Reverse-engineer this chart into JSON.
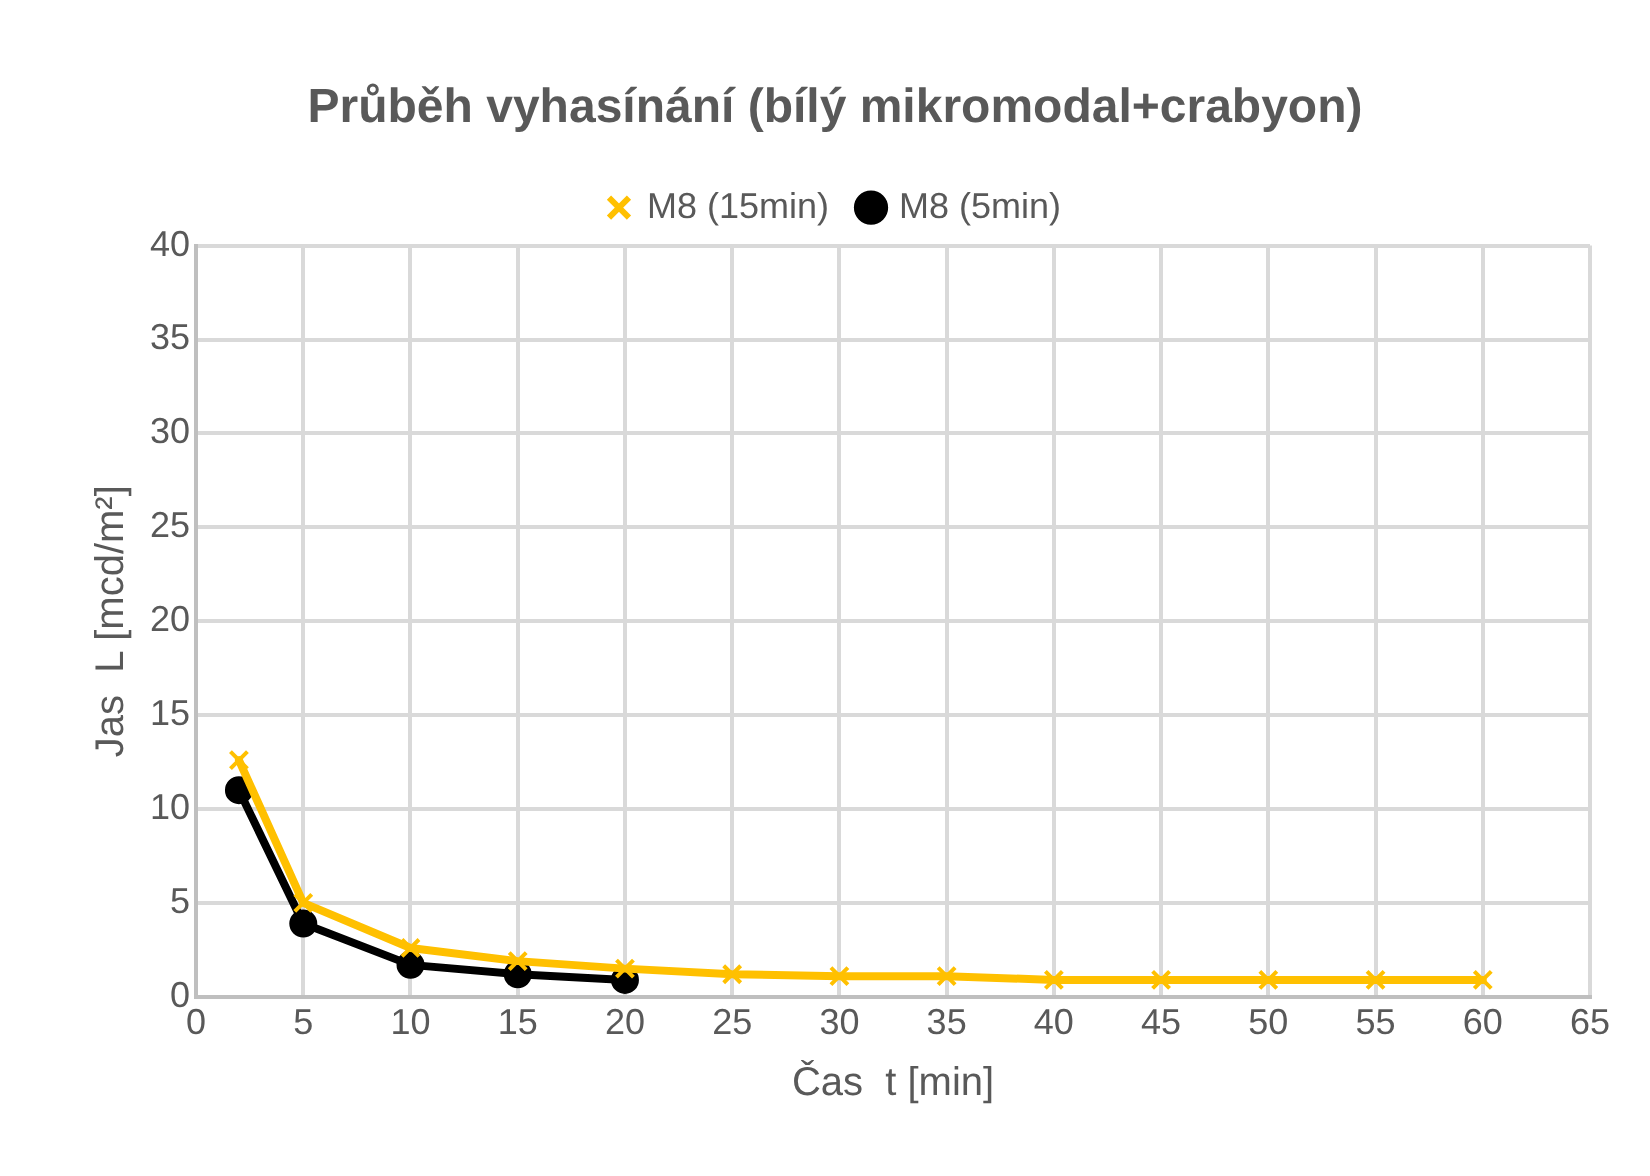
{
  "chart_data": {
    "type": "line",
    "title": "Průběh vyhasínání (bílý mikromodal+crabyon)",
    "xlabel": "Čas  t [min]",
    "ylabel": "Jas  L [mcd/m²]",
    "series": [
      {
        "name": "M8 (15min)",
        "color": "#ffc000",
        "marker": "cross",
        "x": [
          2,
          5,
          10,
          15,
          20,
          25,
          30,
          35,
          40,
          45,
          50,
          55,
          60
        ],
        "values": [
          12.6,
          5.0,
          2.6,
          1.9,
          1.5,
          1.2,
          1.1,
          1.1,
          0.9,
          0.9,
          0.9,
          0.9,
          0.9
        ]
      },
      {
        "name": "M8 (5min)",
        "color": "#000000",
        "marker": "circle",
        "x": [
          2,
          5,
          10,
          15,
          20
        ],
        "values": [
          11.0,
          3.9,
          1.7,
          1.2,
          0.9
        ]
      }
    ],
    "xlim": [
      0,
      65
    ],
    "xticks": [
      0,
      5,
      10,
      15,
      20,
      25,
      30,
      35,
      40,
      45,
      50,
      55,
      60,
      65
    ],
    "ylim": [
      0,
      40
    ],
    "yticks": [
      0,
      5,
      10,
      15,
      20,
      25,
      30,
      35,
      40
    ],
    "grid": true,
    "legend": "top",
    "line_style": "solid"
  }
}
